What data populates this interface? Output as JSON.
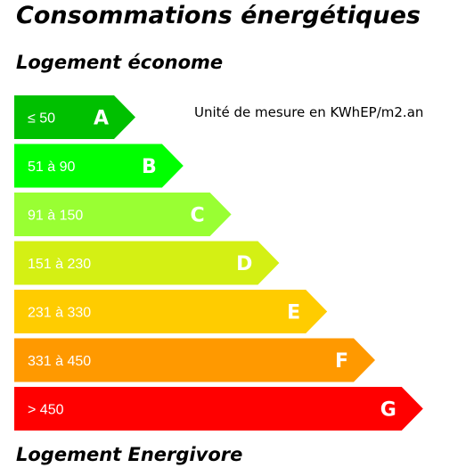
{
  "title": "Consommations énergétiques",
  "top_label": "Logement économe",
  "bottom_label": "Logement Energivore",
  "unit_label": "Unité de mesure en KWhEP/m2.an",
  "chart_data": {
    "type": "bar",
    "orientation": "horizontal",
    "categories": [
      "A",
      "B",
      "C",
      "D",
      "E",
      "F",
      "G"
    ],
    "range_labels": [
      "≤ 50",
      "51 à 90",
      "91 à 150",
      "151 à 230",
      "231 à 330",
      "331 à 450",
      "> 450"
    ],
    "values": [
      1,
      2,
      3,
      4,
      5,
      6,
      7
    ],
    "colors": [
      "#00c000",
      "#00ff00",
      "#99ff33",
      "#d4f014",
      "#ffcc00",
      "#ff9900",
      "#ff0000"
    ]
  }
}
